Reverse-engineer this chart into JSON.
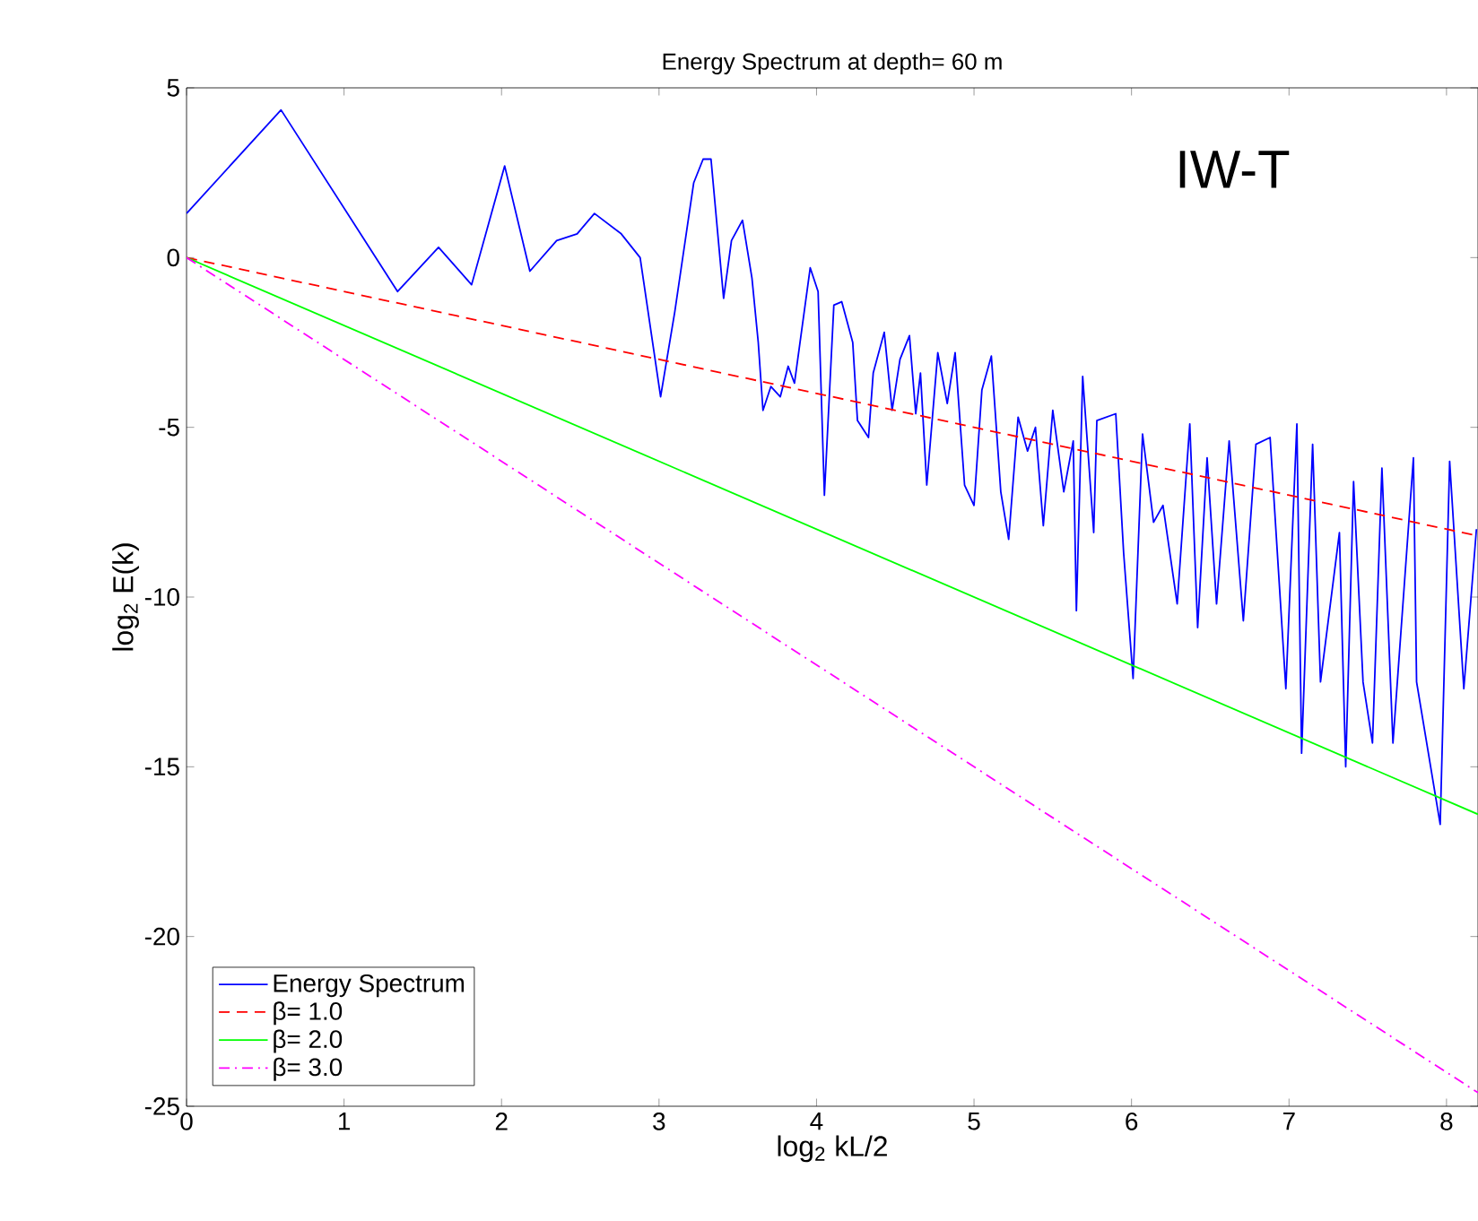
{
  "chart_data": {
    "type": "line",
    "title": "Energy Spectrum at depth= 60 m",
    "xlabel": "log$_{2}$ kL/2",
    "ylabel": "log$_{2}$ E(k)",
    "annotations": [
      "IW-T"
    ],
    "xlim": [
      0,
      8.2
    ],
    "ylim": [
      -25,
      5
    ],
    "xticks": [
      0,
      1,
      2,
      3,
      4,
      5,
      6,
      7,
      8
    ],
    "yticks": [
      -25,
      -20,
      -15,
      -10,
      -5,
      0,
      5
    ],
    "legend": "bottom left",
    "grid": false,
    "marker": "none",
    "series": [
      {
        "name": "Energy Spectrum",
        "color": "#0000ff",
        "line_style": "solid",
        "x": [
          0,
          0.6,
          1.34,
          1.6,
          1.81,
          2.02,
          2.18,
          2.35,
          2.48,
          2.59,
          2.76,
          2.88,
          3.01,
          3.1,
          3.22,
          3.28,
          3.33,
          3.41,
          3.46,
          3.53,
          3.59,
          3.63,
          3.66,
          3.71,
          3.77,
          3.82,
          3.86,
          3.96,
          4.01,
          4.05,
          4.11,
          4.16,
          4.23,
          4.26,
          4.33,
          4.36,
          4.43,
          4.48,
          4.53,
          4.59,
          4.63,
          4.66,
          4.7,
          4.77,
          4.83,
          4.88,
          4.94,
          5.0,
          5.05,
          5.11,
          5.17,
          5.22,
          5.28,
          5.34,
          5.39,
          5.44,
          5.5,
          5.57,
          5.63,
          5.65,
          5.69,
          5.76,
          5.78,
          5.9,
          5.95,
          6.01,
          6.07,
          6.14,
          6.2,
          6.29,
          6.37,
          6.42,
          6.48,
          6.54,
          6.62,
          6.71,
          6.79,
          6.88,
          6.98,
          7.05,
          7.08,
          7.15,
          7.2,
          7.32,
          7.36,
          7.41,
          7.47,
          7.53,
          7.59,
          7.66,
          7.79,
          7.81,
          7.96,
          8.02,
          8.11,
          8.19
        ],
        "values": [
          1.3,
          4.35,
          -1.0,
          0.3,
          -0.8,
          2.7,
          -0.4,
          0.5,
          0.7,
          1.3,
          0.7,
          0.0,
          -4.1,
          -1.6,
          2.2,
          2.9,
          2.9,
          -1.2,
          0.5,
          1.1,
          -0.6,
          -2.5,
          -4.5,
          -3.8,
          -4.1,
          -3.2,
          -3.7,
          -0.3,
          -1.0,
          -7.0,
          -1.4,
          -1.3,
          -2.5,
          -4.8,
          -5.3,
          -3.4,
          -2.2,
          -4.5,
          -3.0,
          -2.3,
          -4.6,
          -3.4,
          -6.7,
          -2.8,
          -4.3,
          -2.8,
          -6.7,
          -7.3,
          -3.9,
          -2.9,
          -6.9,
          -8.3,
          -4.7,
          -5.7,
          -5.0,
          -7.9,
          -4.5,
          -6.9,
          -5.4,
          -10.4,
          -3.5,
          -8.1,
          -4.8,
          -4.6,
          -8.7,
          -12.4,
          -5.2,
          -7.8,
          -7.3,
          -10.2,
          -4.9,
          -10.9,
          -5.9,
          -10.2,
          -5.4,
          -10.7,
          -5.5,
          -5.3,
          -12.7,
          -4.9,
          -14.6,
          -5.5,
          -12.5,
          -8.1,
          -15.0,
          -6.6,
          -12.5,
          -14.3,
          -6.2,
          -14.3,
          -5.9,
          -12.5,
          -16.7,
          -6.0,
          -12.7,
          -8.0
        ]
      },
      {
        "name": "β= 1.0",
        "color": "#ff0000",
        "line_style": "dashed",
        "x": [
          0,
          8.2
        ],
        "values": [
          0,
          -8.2
        ]
      },
      {
        "name": "β= 2.0",
        "color": "#00ff00",
        "line_style": "solid",
        "x": [
          0,
          8.2
        ],
        "values": [
          0,
          -16.4
        ]
      },
      {
        "name": "β= 3.0",
        "color": "#ff00ff",
        "line_style": "dashdot",
        "x": [
          0,
          8.2
        ],
        "values": [
          0,
          -24.6
        ]
      }
    ]
  }
}
